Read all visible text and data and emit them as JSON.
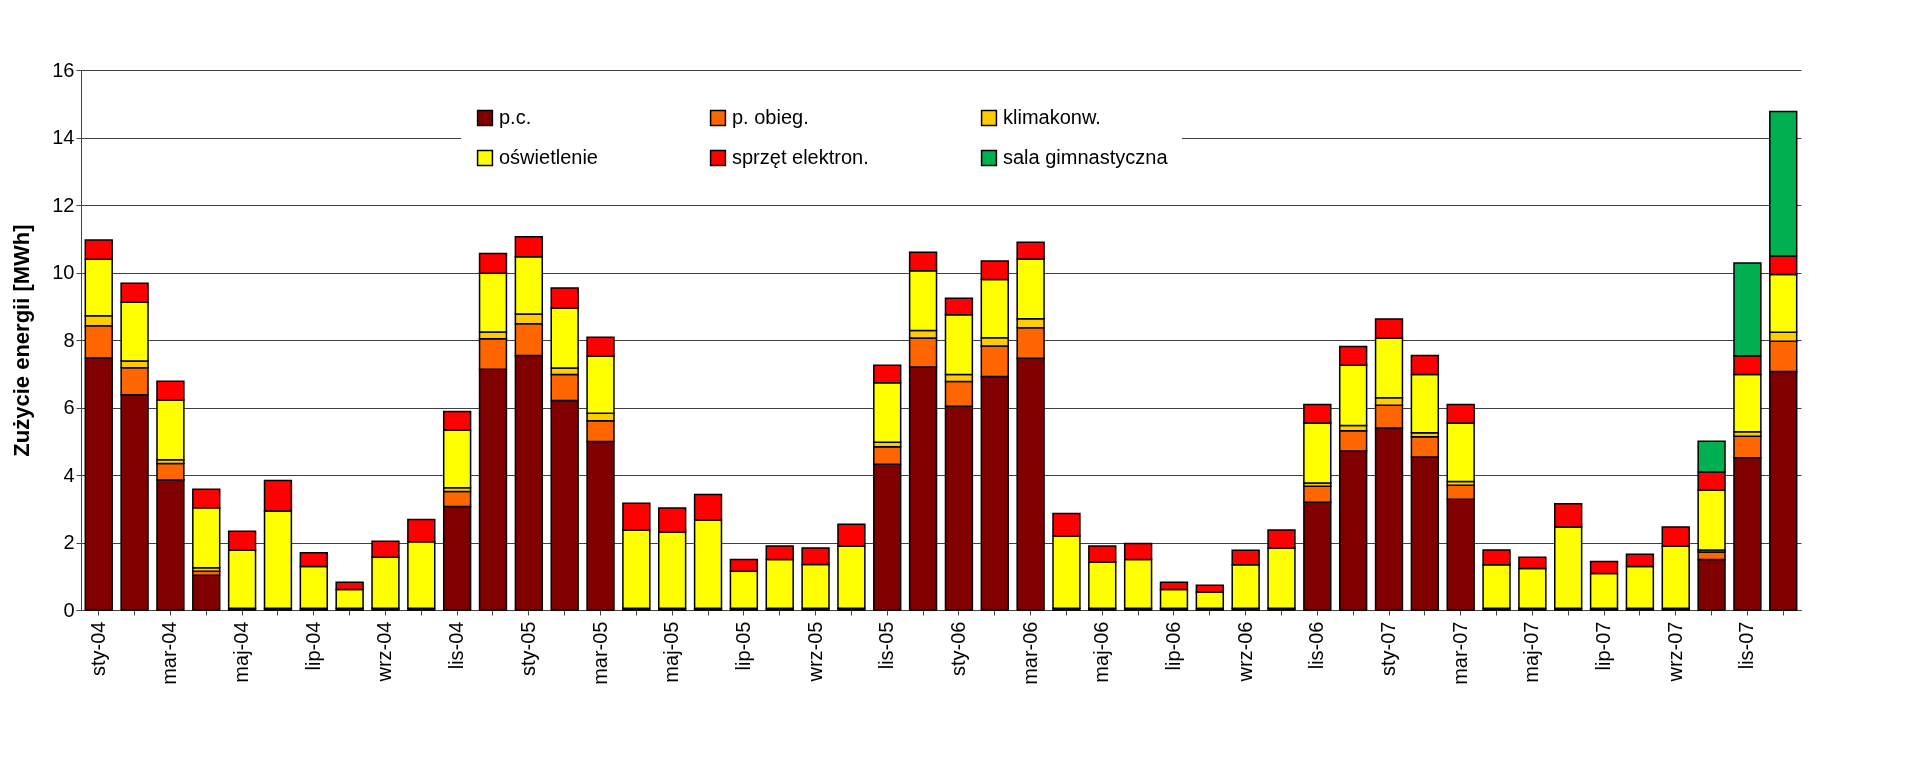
{
  "chart_data": {
    "type": "bar",
    "stacked": true,
    "ylabel": "Zużycie energii [MWh]",
    "categories": [
      "sty-04",
      null,
      "mar-04",
      null,
      "maj-04",
      null,
      "lip-04",
      null,
      "wrz-04",
      null,
      "lis-04",
      null,
      "sty-05",
      null,
      "mar-05",
      null,
      "maj-05",
      null,
      "lip-05",
      null,
      "wrz-05",
      null,
      "lis-05",
      null,
      "sty-06",
      null,
      "mar-06",
      null,
      "maj-06",
      null,
      "lip-06",
      null,
      "wrz-06",
      null,
      "lis-06",
      null,
      "sty-07",
      null,
      "mar-07",
      null,
      "maj-07",
      null,
      "lip-07",
      null,
      "wrz-07",
      null,
      "lis-07",
      null
    ],
    "series": [
      {
        "name": "p.c.",
        "color": "#800000",
        "values": [
          7.47,
          6.38,
          3.85,
          1.03,
          0.05,
          0.05,
          0.05,
          0.05,
          0.05,
          0.05,
          3.07,
          7.13,
          7.54,
          6.21,
          4.99,
          0.05,
          0.05,
          0.05,
          0.05,
          0.05,
          0.05,
          0.05,
          4.32,
          7.2,
          6.04,
          6.92,
          7.46,
          0.05,
          0.05,
          0.05,
          0.05,
          0.05,
          0.05,
          0.05,
          3.19,
          4.71,
          5.39,
          4.53,
          3.28,
          0.05,
          0.05,
          0.05,
          0.05,
          0.05,
          0.05,
          1.5,
          4.51,
          7.07
        ]
      },
      {
        "name": "p. obieg.",
        "color": "#ff6600",
        "values": [
          0.95,
          0.8,
          0.49,
          0.12,
          0,
          0,
          0,
          0,
          0,
          0,
          0.44,
          0.91,
          0.94,
          0.77,
          0.62,
          0,
          0,
          0,
          0,
          0,
          0,
          0,
          0.52,
          0.86,
          0.73,
          0.9,
          0.9,
          0,
          0,
          0,
          0,
          0,
          0,
          0,
          0.48,
          0.6,
          0.68,
          0.6,
          0.42,
          0,
          0,
          0,
          0,
          0,
          0,
          0.22,
          0.64,
          0.89
        ]
      },
      {
        "name": "klimakonw.",
        "color": "#ffcc00",
        "values": [
          0.3,
          0.2,
          0.11,
          0.1,
          0,
          0,
          0,
          0,
          0,
          0,
          0.11,
          0.2,
          0.29,
          0.19,
          0.22,
          0,
          0,
          0,
          0,
          0,
          0,
          0,
          0.13,
          0.22,
          0.21,
          0.25,
          0.27,
          0,
          0,
          0,
          0,
          0,
          0,
          0,
          0.09,
          0.16,
          0.22,
          0.12,
          0.11,
          0,
          0,
          0,
          0,
          0,
          0,
          0.06,
          0.13,
          0.27
        ]
      },
      {
        "name": "oświetlenie",
        "color": "#ffff00",
        "values": [
          1.67,
          1.74,
          1.77,
          1.78,
          1.72,
          2.88,
          1.24,
          0.56,
          1.51,
          1.97,
          1.71,
          1.74,
          1.7,
          1.78,
          1.69,
          2.32,
          2.26,
          2.62,
          1.1,
          1.45,
          1.3,
          1.84,
          1.76,
          1.77,
          1.77,
          1.72,
          1.77,
          2.14,
          1.37,
          1.45,
          0.56,
          0.48,
          1.29,
          1.79,
          1.78,
          1.78,
          1.77,
          1.73,
          1.73,
          1.29,
          1.18,
          2.41,
          1.03,
          1.24,
          1.84,
          1.77,
          1.7,
          1.71
        ]
      },
      {
        "name": "sprzęt elektron.",
        "color": "#ff0000",
        "values": [
          0.57,
          0.56,
          0.56,
          0.55,
          0.56,
          0.91,
          0.41,
          0.21,
          0.48,
          0.66,
          0.55,
          0.58,
          0.59,
          0.59,
          0.56,
          0.79,
          0.71,
          0.75,
          0.35,
          0.4,
          0.49,
          0.65,
          0.52,
          0.55,
          0.49,
          0.55,
          0.5,
          0.67,
          0.48,
          0.47,
          0.21,
          0.2,
          0.43,
          0.53,
          0.55,
          0.56,
          0.56,
          0.56,
          0.55,
          0.44,
          0.33,
          0.69,
          0.36,
          0.36,
          0.57,
          0.54,
          0.55,
          0.55
        ]
      },
      {
        "name": "sala gimnastyczna",
        "color": "#00b050",
        "values": [
          null,
          null,
          null,
          null,
          null,
          null,
          null,
          null,
          null,
          null,
          null,
          null,
          null,
          null,
          null,
          null,
          null,
          null,
          null,
          null,
          null,
          null,
          null,
          null,
          null,
          null,
          null,
          null,
          null,
          null,
          null,
          null,
          null,
          null,
          null,
          null,
          null,
          null,
          null,
          null,
          null,
          null,
          null,
          null,
          null,
          0.91,
          2.75,
          4.28
        ]
      }
    ],
    "ylim": [
      0,
      16
    ],
    "yticks": [
      0,
      2,
      4,
      6,
      8,
      10,
      12,
      14,
      16
    ],
    "grid": "y",
    "legend": "top"
  }
}
